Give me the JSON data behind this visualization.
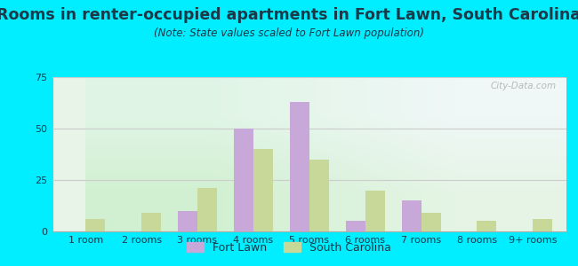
{
  "title": "Rooms in renter-occupied apartments in Fort Lawn, South Carolina",
  "subtitle": "(Note: State values scaled to Fort Lawn population)",
  "categories": [
    "1 room",
    "2 rooms",
    "3 rooms",
    "4 rooms",
    "5 rooms",
    "6 rooms",
    "7 rooms",
    "8 rooms",
    "9+ rooms"
  ],
  "fort_lawn": [
    0,
    0,
    10,
    50,
    63,
    5,
    15,
    0,
    0
  ],
  "south_carolina": [
    6,
    9,
    21,
    40,
    35,
    20,
    9,
    5,
    6
  ],
  "fort_lawn_color": "#c8a8d8",
  "south_carolina_color": "#c8d898",
  "background_outer": "#00eeff",
  "ylim": [
    0,
    75
  ],
  "yticks": [
    0,
    25,
    50,
    75
  ],
  "bar_width": 0.35,
  "title_fontsize": 12.5,
  "subtitle_fontsize": 8.5,
  "tick_fontsize": 8,
  "legend_fontsize": 9,
  "text_color": "#1a3a4a"
}
